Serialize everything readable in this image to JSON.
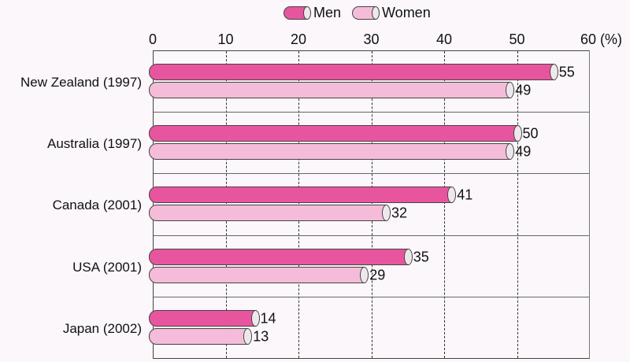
{
  "chart_data": {
    "type": "bar",
    "orientation": "horizontal",
    "title": "",
    "xlabel": "(%)",
    "ylabel": "",
    "xlim": [
      0,
      60
    ],
    "xticks": [
      "0",
      "10",
      "20",
      "30",
      "40",
      "50",
      "60 (%)"
    ],
    "grid": "vertical dashed",
    "legend_position": "top",
    "categories": [
      "New Zealand (1997)",
      "Australia (1997)",
      "Canada (2001)",
      "USA (2001)",
      "Japan (2002)"
    ],
    "series": [
      {
        "name": "Men",
        "color": "#e8559f",
        "values": [
          55,
          50,
          41,
          35,
          14
        ]
      },
      {
        "name": "Women",
        "color": "#f5bcd9",
        "values": [
          49,
          49,
          32,
          29,
          13
        ]
      }
    ]
  },
  "legend": [
    {
      "label": "Men",
      "color": "#e8559f"
    },
    {
      "label": "Women",
      "color": "#f5bcd9"
    }
  ]
}
